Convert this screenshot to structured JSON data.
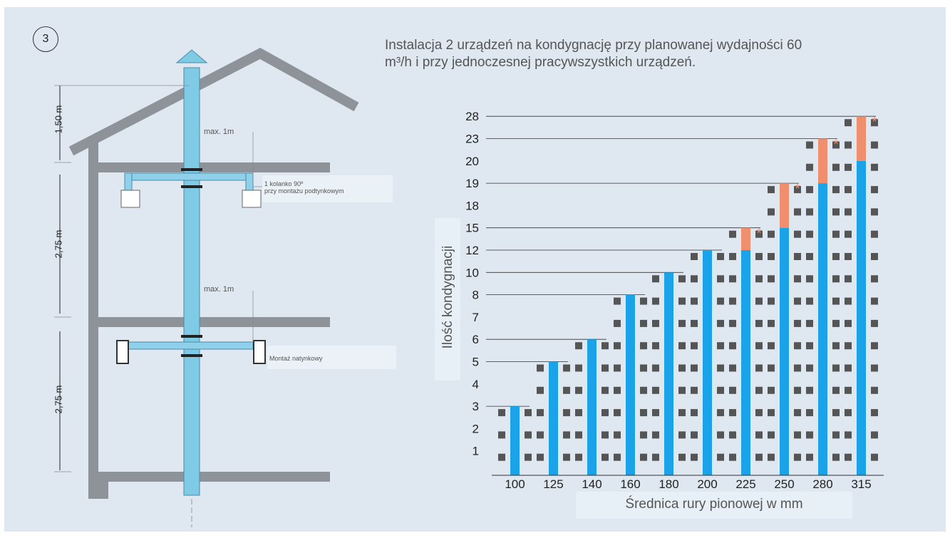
{
  "figure": {
    "number": "3",
    "title": "Instalacja 2 urządzeń na kondygnację przy planowanej wydajności 60 m³/h i przy jednoczesnej pracywszystkich urządzeń.",
    "callout_top_line1": "1 kolanko 90º",
    "callout_top_line2": "przy montażu podtynkowym",
    "callout_bottom": "Montaż natynkowy",
    "max_label_top": "max. 1m",
    "max_label_bottom": "max. 1m",
    "dims": [
      "1,50 m",
      "2,75 m",
      "2,75 m"
    ]
  },
  "chart_data": {
    "type": "bar",
    "xlabel": "Średnica rury pionowej w mm",
    "ylabel": "Ilość kondygnacji",
    "categories": [
      "100",
      "125",
      "140",
      "160",
      "180",
      "200",
      "225",
      "250",
      "280",
      "315"
    ],
    "y_ticks": [
      "1",
      "2",
      "3",
      "4",
      "5",
      "6",
      "7",
      "8",
      "10",
      "12",
      "15",
      "18",
      "19",
      "20",
      "23",
      "28"
    ],
    "series": [
      {
        "values": [
          3,
          5,
          6,
          8,
          10,
          12,
          12,
          15,
          19,
          20
        ]
      },
      {
        "values": [
          0,
          0,
          0,
          0,
          0,
          0,
          15,
          19,
          23,
          28
        ]
      }
    ],
    "starred": [
      "225",
      "250",
      "280",
      "315"
    ],
    "star_symbol": "*",
    "colors": {
      "bar": "#1aa3e8",
      "extension": "#ef8f6e",
      "device": "#555555"
    }
  }
}
